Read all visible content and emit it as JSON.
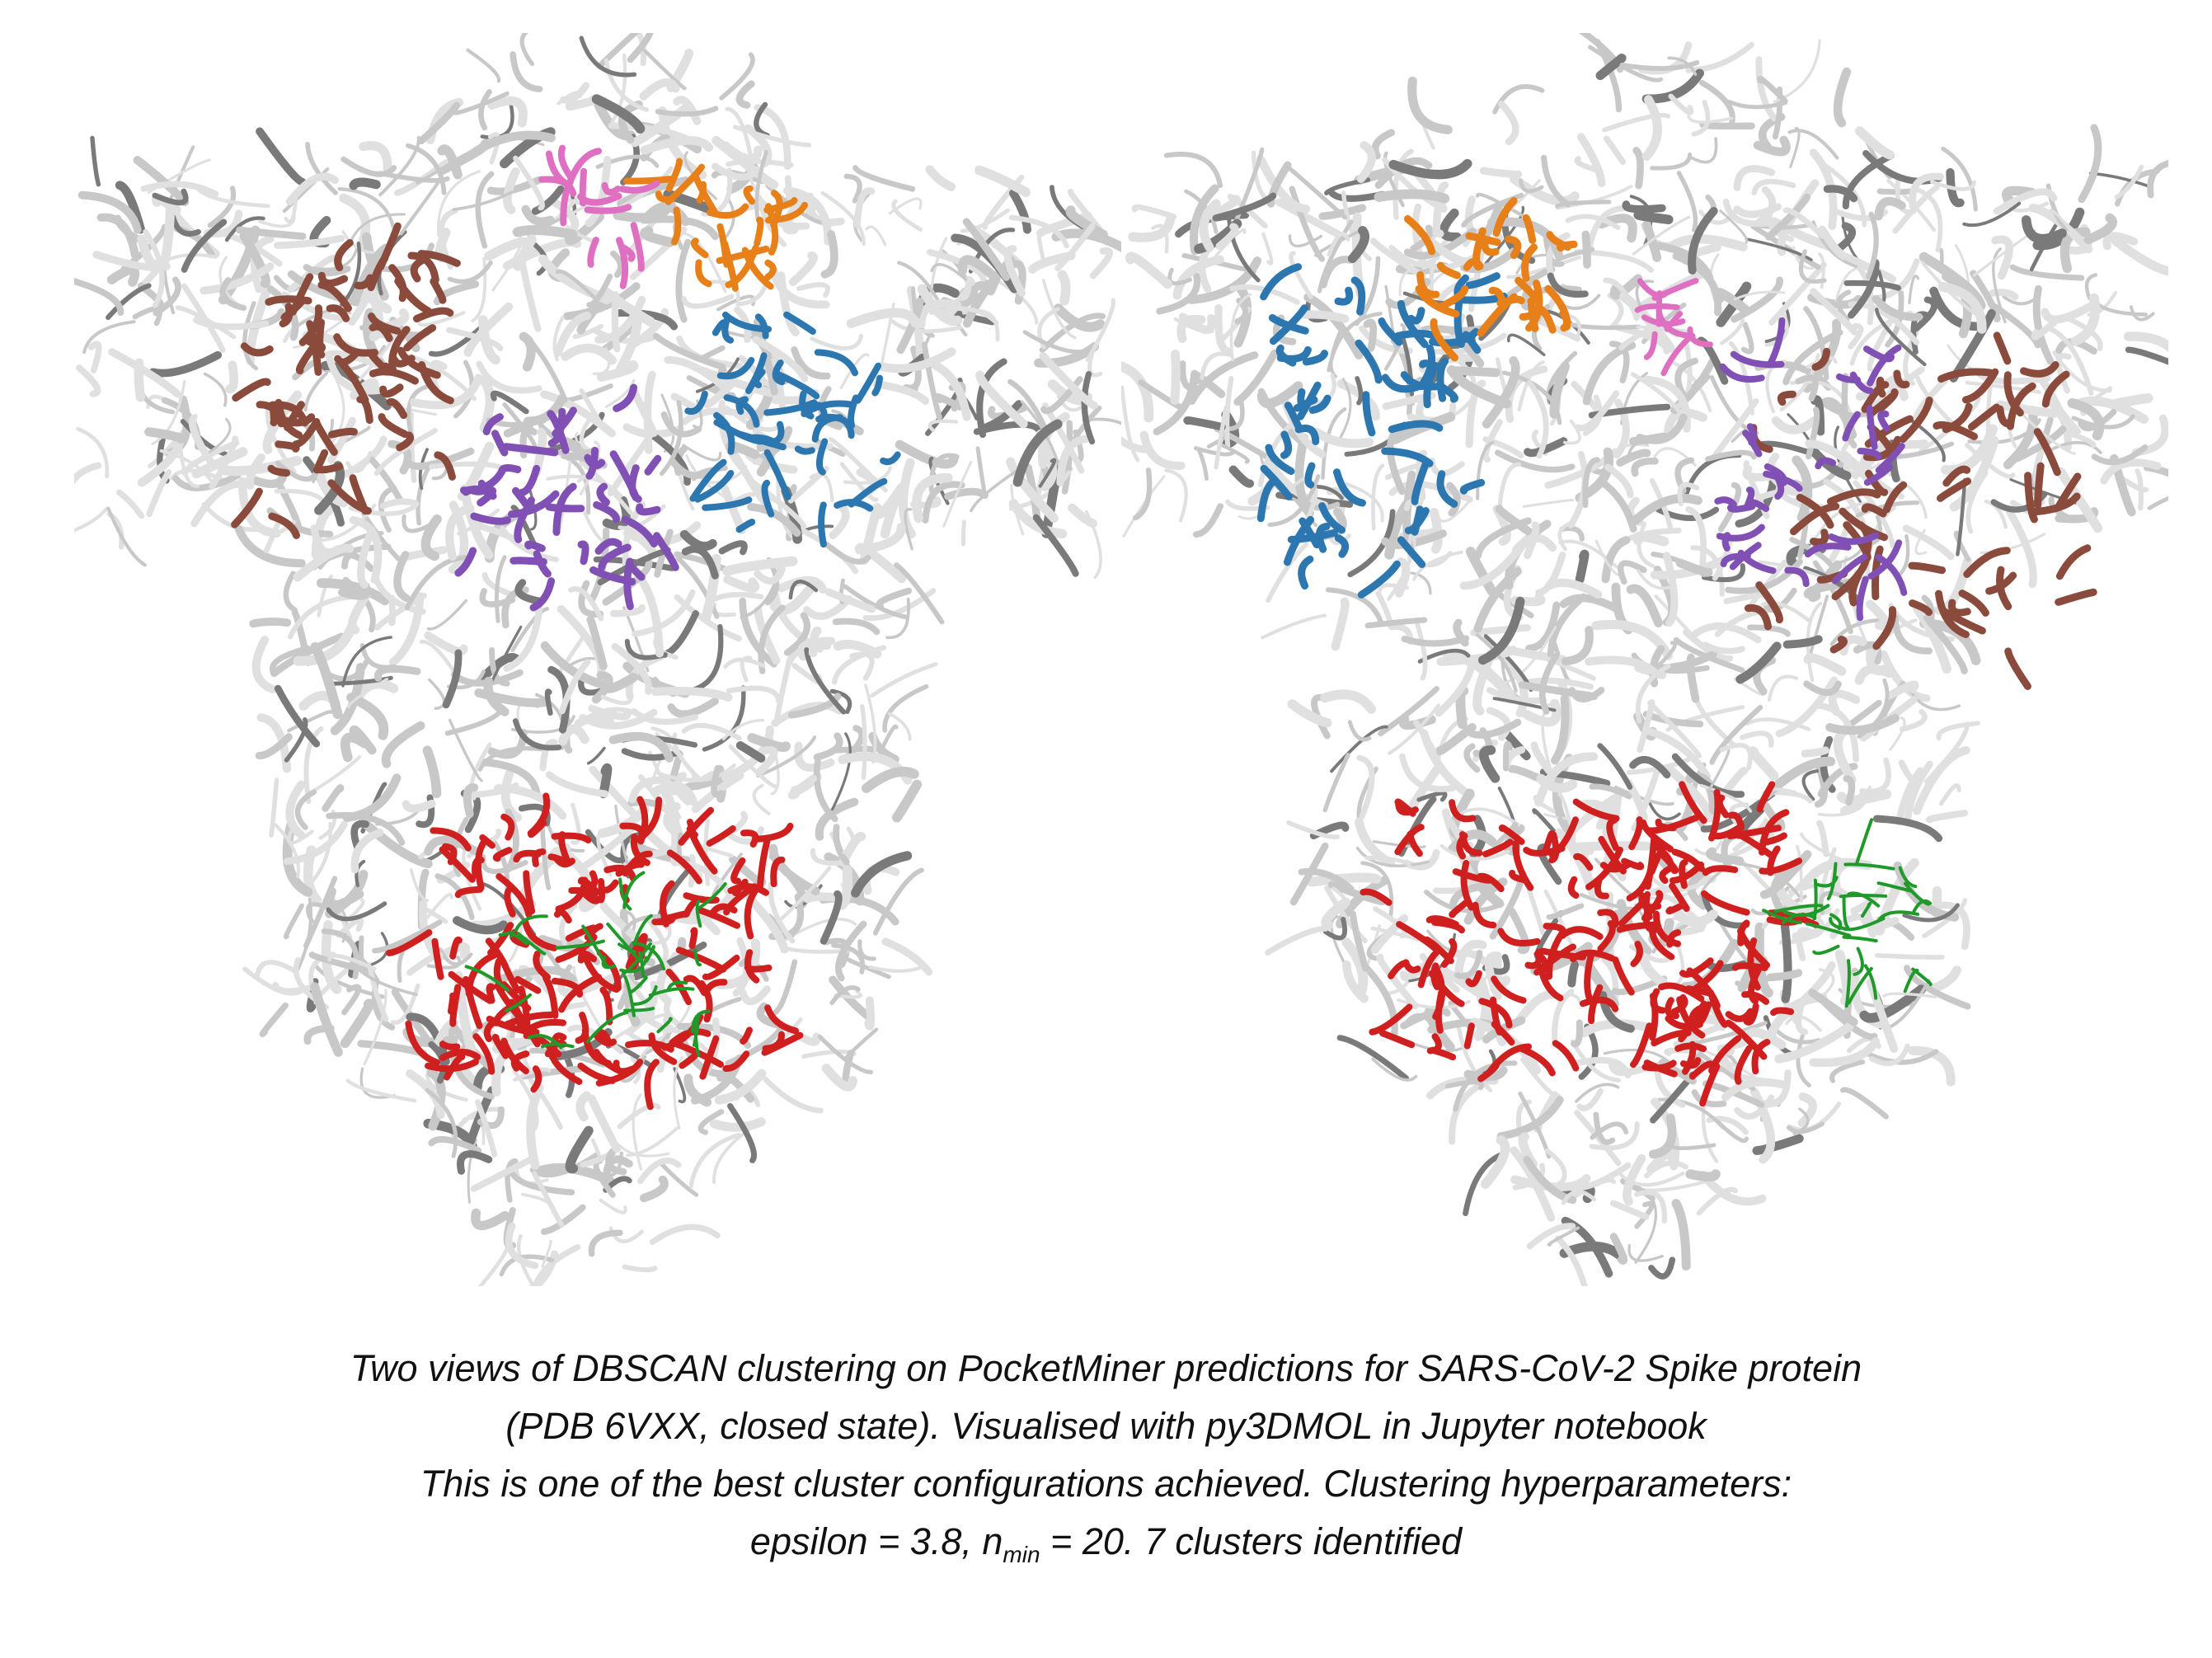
{
  "figure": {
    "panels": [
      {
        "id": "left-view",
        "structure": "spike-trimer-ribbon"
      },
      {
        "id": "right-view",
        "structure": "spike-trimer-ribbon"
      }
    ],
    "cluster_colors": [
      "#8a4b3c",
      "#e8801a",
      "#df6fc0",
      "#2d77b0",
      "#8150b5",
      "#d01f1f",
      "#1f9a2a"
    ],
    "ribbon_color": "#c8c8c8"
  },
  "caption": {
    "line1": "Two views of DBSCAN clustering on PocketMiner predictions for SARS-CoV-2 Spike protein",
    "line2": "(PDB 6VXX, closed state). Visualised with py3DMOL in Jupyter notebook",
    "line3": "This is one of the best cluster configurations achieved. Clustering hyperparameters:",
    "line4_prefix": "epsilon = 3.8, n",
    "line4_sub": "min",
    "line4_suffix": " = 20. 7 clusters identified"
  }
}
